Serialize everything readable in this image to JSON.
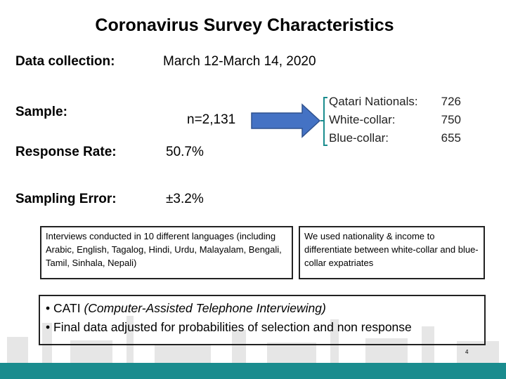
{
  "title": "Coronavirus Survey Characteristics",
  "rows": [
    {
      "label": "Data collection:",
      "value": "March 12-March 14, 2020"
    },
    {
      "label": "Sample:",
      "value": "n=2,131"
    },
    {
      "label": "Response Rate:",
      "value": "50.7%"
    },
    {
      "label": "Sampling Error:",
      "value": "±3.2%"
    }
  ],
  "sample_breakdown": [
    {
      "label": "Qatari Nationals:",
      "value": "726"
    },
    {
      "label": "White-collar:",
      "value": "750"
    },
    {
      "label": "Blue-collar:",
      "value": "655"
    }
  ],
  "notes": [
    "Interviews conducted in 10 different languages (including Arabic, English, Tagalog, Hindi, Urdu, Malayalam, Bengali, Tamil, Sinhala, Nepali)",
    "We used nationality & income to differentiate between white-collar and blue-collar expatriates"
  ],
  "bullets": [
    {
      "text": "CATI",
      "italic": "(Computer-Assisted Telephone Interviewing)"
    },
    {
      "text": "Final data adjusted for probabilities of selection and non response"
    }
  ],
  "page_number": "4"
}
